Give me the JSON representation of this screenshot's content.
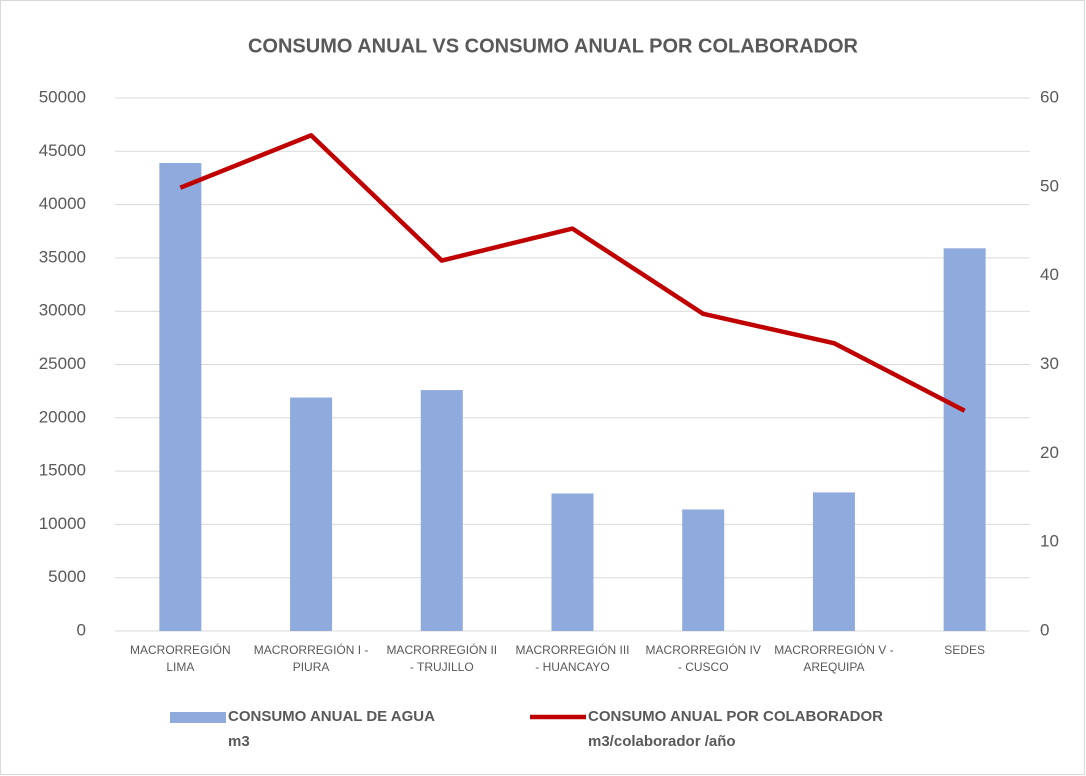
{
  "chart_data": {
    "type": "bar",
    "title": "CONSUMO ANUAL VS CONSUMO ANUAL POR COLABORADOR",
    "categories": [
      "MACRORREGIÓN LIMA",
      "MACRORREGIÓN I - PIURA",
      "MACRORREGIÓN II - TRUJILLO",
      "MACRORREGIÓN III - HUANCAYO",
      "MACRORREGIÓN IV - CUSCO",
      "MACRORREGIÓN V - AREQUIPA",
      "SEDES"
    ],
    "series": [
      {
        "name": "CONSUMO ANUAL DE AGUA m3",
        "type": "bar",
        "color": "#8faadc",
        "values": [
          43900,
          21900,
          22600,
          12900,
          11400,
          13000,
          35900
        ]
      },
      {
        "name": "CONSUMO ANUAL POR COLABORADOR m3/colaborador /año",
        "type": "line",
        "axis": "y2",
        "color": "#c00000",
        "values": [
          49.9,
          55.8,
          41.7,
          45.3,
          35.7,
          32.4,
          24.8
        ]
      }
    ],
    "ylim": [
      0,
      50000
    ],
    "yticks": [
      0,
      5000,
      10000,
      15000,
      20000,
      25000,
      30000,
      35000,
      40000,
      45000,
      50000
    ],
    "y2lim": [
      0,
      60
    ],
    "y2ticks": [
      0,
      10,
      20,
      30,
      40,
      50,
      60
    ],
    "grid": true,
    "legend": "bottom"
  }
}
